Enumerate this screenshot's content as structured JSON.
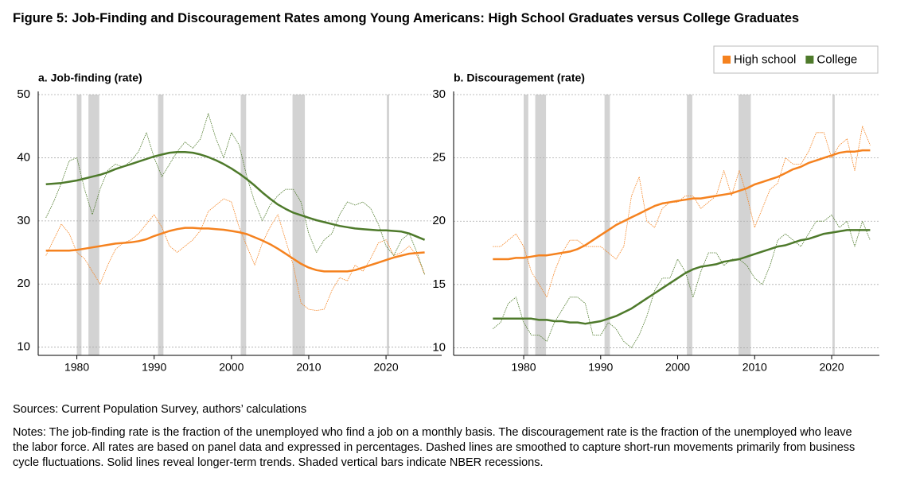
{
  "title": "Figure 5: Job-Finding and Discouragement Rates among Young Americans: High School Graduates versus College Graduates",
  "sources": "Sources: Current Population Survey, authors’ calculations",
  "notes": "Notes: The job-finding rate is the fraction of the unemployed who find a job on a monthly basis. The discouragement rate is the fraction of the unemployed who leave the labor force. All rates are based on panel data and expressed in percentages. Dashed lines are smoothed to capture short-run movements primarily from business cycle fluctuations. Solid lines reveal longer-term trends. Shaded vertical bars indicate NBER recessions.",
  "chart_data": [
    {
      "type": "line",
      "title": "a. Job-finding (rate)",
      "x": [
        1976,
        1977,
        1978,
        1979,
        1980,
        1981,
        1982,
        1983,
        1984,
        1985,
        1986,
        1987,
        1988,
        1989,
        1990,
        1991,
        1992,
        1993,
        1994,
        1995,
        1996,
        1997,
        1998,
        1999,
        2000,
        2001,
        2002,
        2003,
        2004,
        2005,
        2006,
        2007,
        2008,
        2009,
        2010,
        2011,
        2012,
        2013,
        2014,
        2015,
        2016,
        2017,
        2018,
        2019,
        2020,
        2021,
        2022,
        2023,
        2024,
        2025
      ],
      "xlim": [
        1975,
        2027.2
      ],
      "xticks": [
        1980,
        1990,
        2000,
        2010,
        2020
      ],
      "ylim": [
        8.7,
        50
      ],
      "yticks": [
        10,
        20,
        30,
        40,
        50
      ],
      "grid": true,
      "recessions": [
        [
          1980.0,
          1980.6
        ],
        [
          1981.5,
          1982.9
        ],
        [
          1990.5,
          1991.2
        ],
        [
          2001.2,
          2001.9
        ],
        [
          2007.9,
          2009.5
        ],
        [
          2020.1,
          2020.4
        ]
      ],
      "recession_color": "#d3d3d3",
      "series": [
        {
          "color": "#f5821f",
          "style": "solid",
          "values": [
            25.3,
            25.3,
            25.3,
            25.3,
            25.4,
            25.6,
            25.8,
            26.0,
            26.2,
            26.4,
            26.5,
            26.6,
            26.8,
            27.1,
            27.6,
            28.0,
            28.4,
            28.7,
            28.9,
            28.9,
            28.8,
            28.8,
            28.7,
            28.6,
            28.4,
            28.2,
            27.9,
            27.4,
            26.9,
            26.3,
            25.6,
            24.8,
            24.0,
            23.2,
            22.6,
            22.2,
            22.0,
            22.0,
            22.0,
            22.0,
            22.2,
            22.6,
            23.0,
            23.4,
            23.8,
            24.2,
            24.5,
            24.8,
            24.9,
            25.0
          ]
        },
        {
          "color": "#4e7a2b",
          "style": "solid",
          "values": [
            35.8,
            35.9,
            36.0,
            36.2,
            36.4,
            36.7,
            37.0,
            37.3,
            37.7,
            38.2,
            38.6,
            39.0,
            39.4,
            39.8,
            40.2,
            40.5,
            40.8,
            40.9,
            40.9,
            40.8,
            40.5,
            40.1,
            39.6,
            39.0,
            38.3,
            37.5,
            36.6,
            35.6,
            34.5,
            33.5,
            32.6,
            31.9,
            31.3,
            30.9,
            30.5,
            30.1,
            29.8,
            29.5,
            29.2,
            29.0,
            28.8,
            28.7,
            28.6,
            28.5,
            28.5,
            28.4,
            28.3,
            28.0,
            27.5,
            27.0
          ]
        },
        {
          "color": "#f5821f",
          "style": "dashed",
          "values": [
            24.5,
            27,
            29.5,
            28,
            25,
            24,
            22,
            20,
            23,
            25.5,
            26.5,
            27,
            28,
            29.5,
            31,
            29,
            26,
            25,
            26,
            27,
            28.5,
            31.5,
            32.5,
            33.5,
            33,
            29,
            26,
            23,
            26.5,
            29,
            31,
            27,
            23,
            17,
            16,
            15.8,
            16,
            19,
            21,
            20.5,
            23,
            22,
            24,
            26.5,
            27,
            24.5,
            25,
            26,
            24.5,
            21.5
          ]
        },
        {
          "color": "#4e7a2b",
          "style": "dashed",
          "values": [
            30.5,
            33,
            36,
            39.5,
            40,
            35,
            31,
            35,
            38,
            39,
            38.5,
            39.5,
            41,
            44,
            40,
            37,
            39,
            41,
            42.5,
            41.5,
            43,
            47,
            43,
            40,
            44,
            42,
            37,
            33,
            30,
            32.5,
            34,
            35,
            35,
            33,
            28,
            25,
            27,
            28,
            31,
            33,
            32.5,
            33,
            32,
            29.5,
            26,
            24.5,
            27,
            28,
            25,
            21.5
          ]
        }
      ]
    },
    {
      "type": "line",
      "title": "b. Discouragement (rate)",
      "x": [
        1976,
        1977,
        1978,
        1979,
        1980,
        1981,
        1982,
        1983,
        1984,
        1985,
        1986,
        1987,
        1988,
        1989,
        1990,
        1991,
        1992,
        1993,
        1994,
        1995,
        1996,
        1997,
        1998,
        1999,
        2000,
        2001,
        2002,
        2003,
        2004,
        2005,
        2006,
        2007,
        2008,
        2009,
        2010,
        2011,
        2012,
        2013,
        2014,
        2015,
        2016,
        2017,
        2018,
        2019,
        2020,
        2021,
        2022,
        2023,
        2024,
        2025
      ],
      "xlim": [
        1970.9,
        2026.2
      ],
      "xticks": [
        1980,
        1990,
        2000,
        2010,
        2020
      ],
      "ylim": [
        9.4,
        30
      ],
      "yticks": [
        10,
        15,
        20,
        25,
        30
      ],
      "grid": true,
      "recessions": [
        [
          1980.0,
          1980.6
        ],
        [
          1981.5,
          1982.9
        ],
        [
          1990.5,
          1991.2
        ],
        [
          2001.2,
          2001.9
        ],
        [
          2007.9,
          2009.5
        ],
        [
          2020.1,
          2020.4
        ]
      ],
      "recession_color": "#d3d3d3",
      "legend": "top-right",
      "series": [
        {
          "name": "High school",
          "color": "#f5821f",
          "style": "solid",
          "values": [
            17.0,
            17.0,
            17.0,
            17.1,
            17.1,
            17.2,
            17.3,
            17.3,
            17.4,
            17.5,
            17.6,
            17.8,
            18.1,
            18.5,
            18.9,
            19.3,
            19.7,
            20.0,
            20.3,
            20.6,
            20.9,
            21.2,
            21.4,
            21.5,
            21.6,
            21.7,
            21.8,
            21.8,
            21.9,
            22.0,
            22.1,
            22.2,
            22.4,
            22.6,
            22.9,
            23.1,
            23.3,
            23.5,
            23.8,
            24.1,
            24.3,
            24.6,
            24.8,
            25.0,
            25.2,
            25.4,
            25.5,
            25.5,
            25.6,
            25.6
          ]
        },
        {
          "name": "College",
          "color": "#4e7a2b",
          "style": "solid",
          "values": [
            12.3,
            12.3,
            12.3,
            12.3,
            12.3,
            12.3,
            12.2,
            12.2,
            12.1,
            12.1,
            12.0,
            12.0,
            11.9,
            12.0,
            12.1,
            12.3,
            12.5,
            12.8,
            13.1,
            13.5,
            13.9,
            14.3,
            14.7,
            15.1,
            15.5,
            15.9,
            16.2,
            16.4,
            16.5,
            16.6,
            16.8,
            16.9,
            17.0,
            17.2,
            17.4,
            17.6,
            17.8,
            18.0,
            18.1,
            18.3,
            18.5,
            18.6,
            18.8,
            19.0,
            19.1,
            19.2,
            19.3,
            19.3,
            19.3,
            19.3
          ]
        },
        {
          "color": "#f5821f",
          "style": "dashed",
          "values": [
            18,
            18,
            18.5,
            19,
            18,
            16,
            15,
            14,
            16,
            17.5,
            18.5,
            18.5,
            18,
            18,
            18,
            17.5,
            17,
            18,
            22,
            23.5,
            20,
            19.5,
            21,
            21.5,
            21.5,
            22,
            22,
            21,
            21.5,
            22,
            24,
            22,
            24,
            22,
            19.5,
            21,
            22.5,
            23,
            25,
            24.5,
            24.5,
            25.5,
            27,
            27,
            25,
            26,
            26.5,
            24,
            27.5,
            26
          ]
        },
        {
          "color": "#4e7a2b",
          "style": "dashed",
          "values": [
            11.5,
            12,
            13.5,
            14,
            12,
            11,
            11,
            10.5,
            12,
            13,
            14,
            14,
            13.5,
            11,
            11,
            12,
            11.5,
            10.5,
            10,
            11,
            12.5,
            14.5,
            15.5,
            15.5,
            17,
            16,
            14,
            16,
            17.5,
            17.5,
            16.5,
            17,
            17,
            16.5,
            15.5,
            15,
            16.5,
            18.5,
            19,
            18.5,
            18,
            19,
            20,
            20,
            20.5,
            19.5,
            20,
            18,
            20,
            18.5
          ]
        }
      ]
    }
  ]
}
